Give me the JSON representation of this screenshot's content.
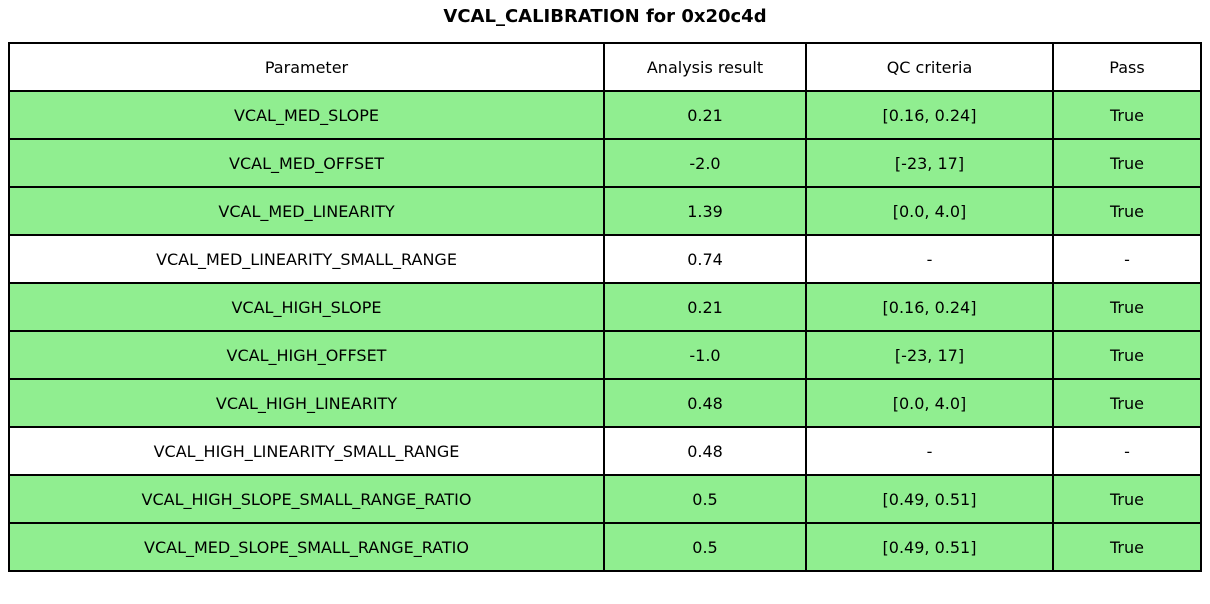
{
  "colors": {
    "pass_green": "#90EE90",
    "row_white": "#FFFFFF",
    "border": "#000000",
    "text": "#000000"
  },
  "chart_data": {
    "type": "table",
    "title": "VCAL_CALIBRATION for 0x20c4d",
    "columns": [
      "Parameter",
      "Analysis result",
      "QC criteria",
      "Pass"
    ],
    "rows": [
      {
        "parameter": "VCAL_MED_SLOPE",
        "result": "0.21",
        "qc": "[0.16, 0.24]",
        "pass": "True",
        "highlight_green": true
      },
      {
        "parameter": "VCAL_MED_OFFSET",
        "result": "-2.0",
        "qc": "[-23, 17]",
        "pass": "True",
        "highlight_green": true
      },
      {
        "parameter": "VCAL_MED_LINEARITY",
        "result": "1.39",
        "qc": "[0.0, 4.0]",
        "pass": "True",
        "highlight_green": true
      },
      {
        "parameter": "VCAL_MED_LINEARITY_SMALL_RANGE",
        "result": "0.74",
        "qc": "-",
        "pass": "-",
        "highlight_green": false
      },
      {
        "parameter": "VCAL_HIGH_SLOPE",
        "result": "0.21",
        "qc": "[0.16, 0.24]",
        "pass": "True",
        "highlight_green": true
      },
      {
        "parameter": "VCAL_HIGH_OFFSET",
        "result": "-1.0",
        "qc": "[-23, 17]",
        "pass": "True",
        "highlight_green": true
      },
      {
        "parameter": "VCAL_HIGH_LINEARITY",
        "result": "0.48",
        "qc": "[0.0, 4.0]",
        "pass": "True",
        "highlight_green": true
      },
      {
        "parameter": "VCAL_HIGH_LINEARITY_SMALL_RANGE",
        "result": "0.48",
        "qc": "-",
        "pass": "-",
        "highlight_green": false
      },
      {
        "parameter": "VCAL_HIGH_SLOPE_SMALL_RANGE_RATIO",
        "result": "0.5",
        "qc": "[0.49, 0.51]",
        "pass": "True",
        "highlight_green": true
      },
      {
        "parameter": "VCAL_MED_SLOPE_SMALL_RANGE_RATIO",
        "result": "0.5",
        "qc": "[0.49, 0.51]",
        "pass": "True",
        "highlight_green": true
      }
    ]
  }
}
